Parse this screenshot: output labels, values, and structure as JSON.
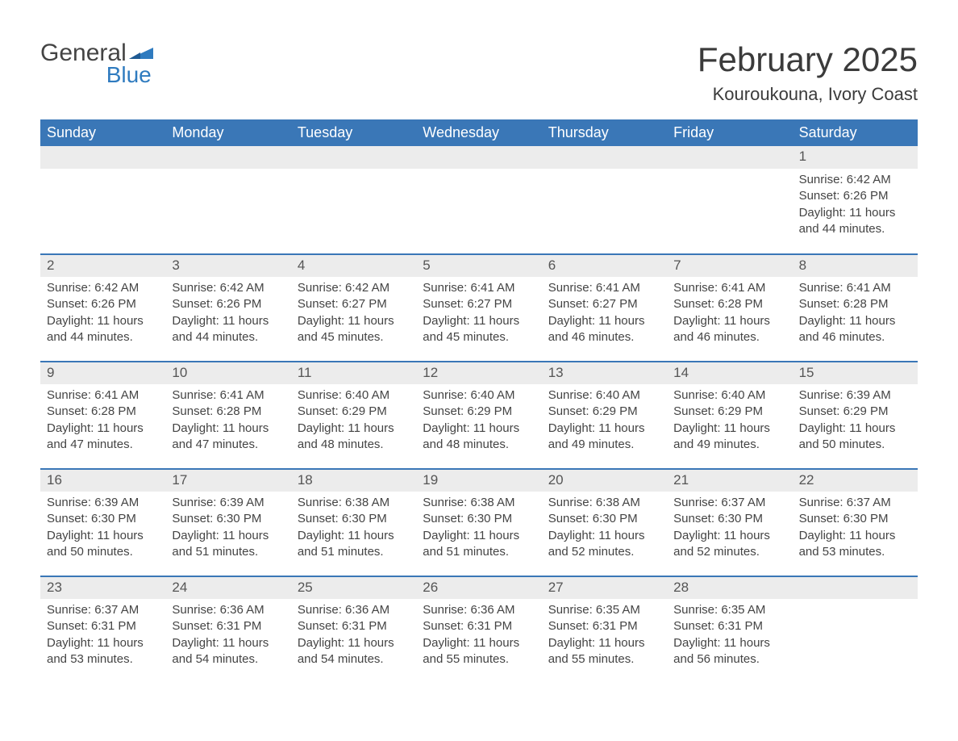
{
  "logo": {
    "word1": "General",
    "word2": "Blue"
  },
  "title": "February 2025",
  "location": "Kouroukouna, Ivory Coast",
  "colors": {
    "header_bg": "#3a77b7",
    "header_text": "#ffffff",
    "strip_bg": "#ececec",
    "rule": "#3a77b7",
    "body_text": "#444444",
    "logo_blue": "#2f7bbf"
  },
  "weekdays": [
    "Sunday",
    "Monday",
    "Tuesday",
    "Wednesday",
    "Thursday",
    "Friday",
    "Saturday"
  ],
  "weeks": [
    [
      null,
      null,
      null,
      null,
      null,
      null,
      {
        "n": "1",
        "sunrise": "Sunrise: 6:42 AM",
        "sunset": "Sunset: 6:26 PM",
        "daylight": "Daylight: 11 hours and 44 minutes."
      }
    ],
    [
      {
        "n": "2",
        "sunrise": "Sunrise: 6:42 AM",
        "sunset": "Sunset: 6:26 PM",
        "daylight": "Daylight: 11 hours and 44 minutes."
      },
      {
        "n": "3",
        "sunrise": "Sunrise: 6:42 AM",
        "sunset": "Sunset: 6:26 PM",
        "daylight": "Daylight: 11 hours and 44 minutes."
      },
      {
        "n": "4",
        "sunrise": "Sunrise: 6:42 AM",
        "sunset": "Sunset: 6:27 PM",
        "daylight": "Daylight: 11 hours and 45 minutes."
      },
      {
        "n": "5",
        "sunrise": "Sunrise: 6:41 AM",
        "sunset": "Sunset: 6:27 PM",
        "daylight": "Daylight: 11 hours and 45 minutes."
      },
      {
        "n": "6",
        "sunrise": "Sunrise: 6:41 AM",
        "sunset": "Sunset: 6:27 PM",
        "daylight": "Daylight: 11 hours and 46 minutes."
      },
      {
        "n": "7",
        "sunrise": "Sunrise: 6:41 AM",
        "sunset": "Sunset: 6:28 PM",
        "daylight": "Daylight: 11 hours and 46 minutes."
      },
      {
        "n": "8",
        "sunrise": "Sunrise: 6:41 AM",
        "sunset": "Sunset: 6:28 PM",
        "daylight": "Daylight: 11 hours and 46 minutes."
      }
    ],
    [
      {
        "n": "9",
        "sunrise": "Sunrise: 6:41 AM",
        "sunset": "Sunset: 6:28 PM",
        "daylight": "Daylight: 11 hours and 47 minutes."
      },
      {
        "n": "10",
        "sunrise": "Sunrise: 6:41 AM",
        "sunset": "Sunset: 6:28 PM",
        "daylight": "Daylight: 11 hours and 47 minutes."
      },
      {
        "n": "11",
        "sunrise": "Sunrise: 6:40 AM",
        "sunset": "Sunset: 6:29 PM",
        "daylight": "Daylight: 11 hours and 48 minutes."
      },
      {
        "n": "12",
        "sunrise": "Sunrise: 6:40 AM",
        "sunset": "Sunset: 6:29 PM",
        "daylight": "Daylight: 11 hours and 48 minutes."
      },
      {
        "n": "13",
        "sunrise": "Sunrise: 6:40 AM",
        "sunset": "Sunset: 6:29 PM",
        "daylight": "Daylight: 11 hours and 49 minutes."
      },
      {
        "n": "14",
        "sunrise": "Sunrise: 6:40 AM",
        "sunset": "Sunset: 6:29 PM",
        "daylight": "Daylight: 11 hours and 49 minutes."
      },
      {
        "n": "15",
        "sunrise": "Sunrise: 6:39 AM",
        "sunset": "Sunset: 6:29 PM",
        "daylight": "Daylight: 11 hours and 50 minutes."
      }
    ],
    [
      {
        "n": "16",
        "sunrise": "Sunrise: 6:39 AM",
        "sunset": "Sunset: 6:30 PM",
        "daylight": "Daylight: 11 hours and 50 minutes."
      },
      {
        "n": "17",
        "sunrise": "Sunrise: 6:39 AM",
        "sunset": "Sunset: 6:30 PM",
        "daylight": "Daylight: 11 hours and 51 minutes."
      },
      {
        "n": "18",
        "sunrise": "Sunrise: 6:38 AM",
        "sunset": "Sunset: 6:30 PM",
        "daylight": "Daylight: 11 hours and 51 minutes."
      },
      {
        "n": "19",
        "sunrise": "Sunrise: 6:38 AM",
        "sunset": "Sunset: 6:30 PM",
        "daylight": "Daylight: 11 hours and 51 minutes."
      },
      {
        "n": "20",
        "sunrise": "Sunrise: 6:38 AM",
        "sunset": "Sunset: 6:30 PM",
        "daylight": "Daylight: 11 hours and 52 minutes."
      },
      {
        "n": "21",
        "sunrise": "Sunrise: 6:37 AM",
        "sunset": "Sunset: 6:30 PM",
        "daylight": "Daylight: 11 hours and 52 minutes."
      },
      {
        "n": "22",
        "sunrise": "Sunrise: 6:37 AM",
        "sunset": "Sunset: 6:30 PM",
        "daylight": "Daylight: 11 hours and 53 minutes."
      }
    ],
    [
      {
        "n": "23",
        "sunrise": "Sunrise: 6:37 AM",
        "sunset": "Sunset: 6:31 PM",
        "daylight": "Daylight: 11 hours and 53 minutes."
      },
      {
        "n": "24",
        "sunrise": "Sunrise: 6:36 AM",
        "sunset": "Sunset: 6:31 PM",
        "daylight": "Daylight: 11 hours and 54 minutes."
      },
      {
        "n": "25",
        "sunrise": "Sunrise: 6:36 AM",
        "sunset": "Sunset: 6:31 PM",
        "daylight": "Daylight: 11 hours and 54 minutes."
      },
      {
        "n": "26",
        "sunrise": "Sunrise: 6:36 AM",
        "sunset": "Sunset: 6:31 PM",
        "daylight": "Daylight: 11 hours and 55 minutes."
      },
      {
        "n": "27",
        "sunrise": "Sunrise: 6:35 AM",
        "sunset": "Sunset: 6:31 PM",
        "daylight": "Daylight: 11 hours and 55 minutes."
      },
      {
        "n": "28",
        "sunrise": "Sunrise: 6:35 AM",
        "sunset": "Sunset: 6:31 PM",
        "daylight": "Daylight: 11 hours and 56 minutes."
      },
      null
    ]
  ]
}
